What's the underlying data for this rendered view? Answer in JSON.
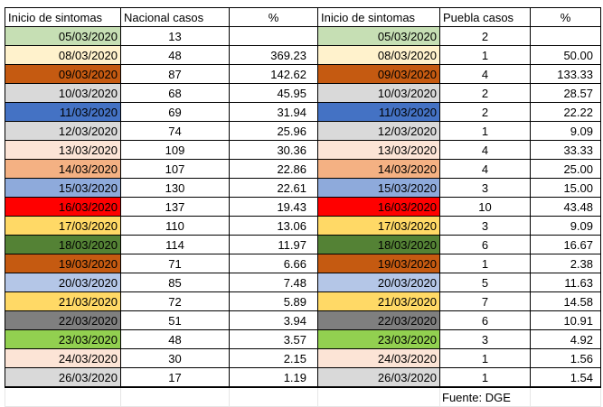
{
  "headers": {
    "national_date": "Inicio de sintomas",
    "national_cases": "Nacional casos",
    "national_pct": "%",
    "puebla_date": "Inicio de sintomas",
    "puebla_cases": "Puebla casos",
    "puebla_pct": "%"
  },
  "rows": [
    {
      "date": "05/03/2020",
      "color": "#c6dfb4",
      "nac": "13",
      "nac_pct": "",
      "pue": "2",
      "pue_pct": ""
    },
    {
      "date": "08/03/2020",
      "color": "#fff2cc",
      "nac": "48",
      "nac_pct": "369.23",
      "pue": "1",
      "pue_pct": "50.00"
    },
    {
      "date": "09/03/2020",
      "color": "#c55a11",
      "nac": "87",
      "nac_pct": "142.62",
      "pue": "4",
      "pue_pct": "133.33"
    },
    {
      "date": "10/03/2020",
      "color": "#d9d9d9",
      "nac": "68",
      "nac_pct": "45.95",
      "pue": "2",
      "pue_pct": "28.57"
    },
    {
      "date": "11/03/2020",
      "color": "#4472c4",
      "nac": "69",
      "nac_pct": "31.94",
      "pue": "2",
      "pue_pct": "22.22"
    },
    {
      "date": "12/03/2020",
      "color": "#d9d9d9",
      "nac": "74",
      "nac_pct": "25.96",
      "pue": "1",
      "pue_pct": "9.09"
    },
    {
      "date": "13/03/2020",
      "color": "#fce4d6",
      "nac": "109",
      "nac_pct": "30.36",
      "pue": "4",
      "pue_pct": "33.33"
    },
    {
      "date": "14/03/2020",
      "color": "#f4b183",
      "nac": "107",
      "nac_pct": "22.86",
      "pue": "4",
      "pue_pct": "25.00"
    },
    {
      "date": "15/03/2020",
      "color": "#8eaadb",
      "nac": "130",
      "nac_pct": "22.61",
      "pue": "3",
      "pue_pct": "15.00"
    },
    {
      "date": "16/03/2020",
      "color": "#ff0000",
      "nac": "137",
      "nac_pct": "19.43",
      "pue": "10",
      "pue_pct": "43.48"
    },
    {
      "date": "17/03/2020",
      "color": "#ffd966",
      "nac": "110",
      "nac_pct": "13.06",
      "pue": "3",
      "pue_pct": "9.09"
    },
    {
      "date": "18/03/2020",
      "color": "#548235",
      "nac": "114",
      "nac_pct": "11.97",
      "pue": "6",
      "pue_pct": "16.67"
    },
    {
      "date": "19/03/2020",
      "color": "#c55a11",
      "nac": "71",
      "nac_pct": "6.66",
      "pue": "1",
      "pue_pct": "2.38"
    },
    {
      "date": "20/03/2020",
      "color": "#b4c6e7",
      "nac": "85",
      "nac_pct": "7.48",
      "pue": "5",
      "pue_pct": "11.63"
    },
    {
      "date": "21/03/2020",
      "color": "#ffd966",
      "nac": "72",
      "nac_pct": "5.89",
      "pue": "7",
      "pue_pct": "14.58"
    },
    {
      "date": "22/03/2020",
      "color": "#7f7f7f",
      "nac": "51",
      "nac_pct": "3.94",
      "pue": "6",
      "pue_pct": "10.91"
    },
    {
      "date": "23/03/2020",
      "color": "#92d050",
      "nac": "48",
      "nac_pct": "3.57",
      "pue": "3",
      "pue_pct": "4.92"
    },
    {
      "date": "24/03/2020",
      "color": "#fce4d6",
      "nac": "30",
      "nac_pct": "2.15",
      "pue": "1",
      "pue_pct": "1.56"
    },
    {
      "date": "26/03/2020",
      "color": "#d9d9d9",
      "nac": "17",
      "nac_pct": "1.19",
      "pue": "1",
      "pue_pct": "1.54"
    }
  ],
  "footer": {
    "source": "Fuente: DGE"
  }
}
